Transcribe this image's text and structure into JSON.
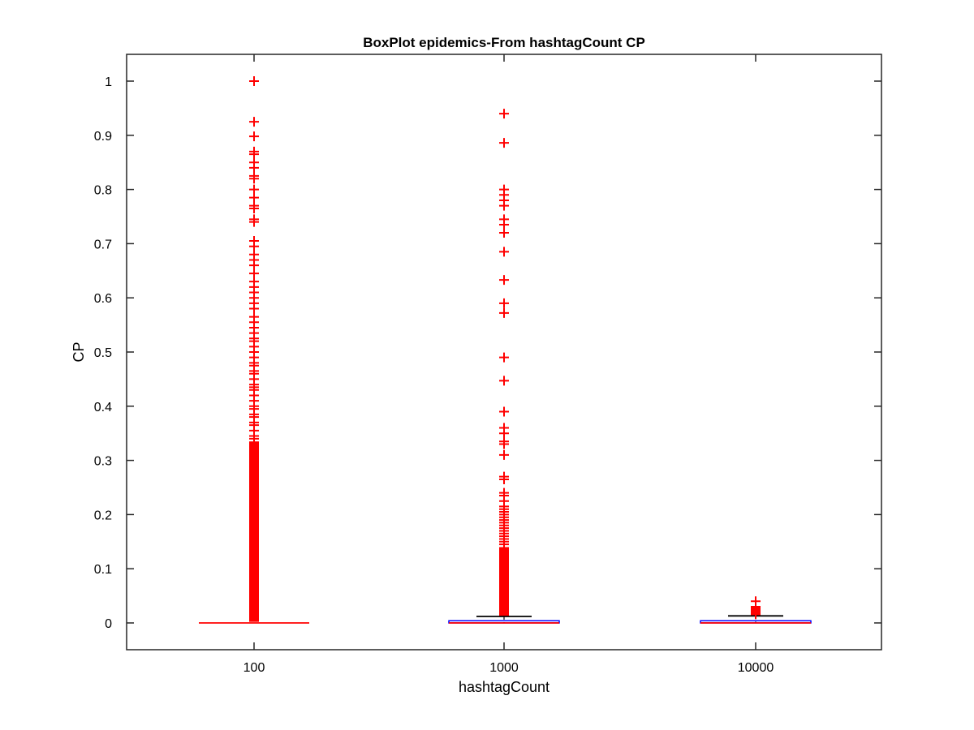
{
  "chart_data": {
    "type": "box",
    "title": "BoxPlot epidemics-From hashtagCount CP",
    "xlabel": "hashtagCount",
    "ylabel": "CP",
    "categories": [
      "100",
      "1000",
      "10000"
    ],
    "ylim": [
      -0.05,
      1.05
    ],
    "yticks": [
      0,
      0.1,
      0.2,
      0.3,
      0.4,
      0.5,
      0.6,
      0.7,
      0.8,
      0.9,
      1
    ],
    "ytick_labels": [
      "0",
      "0.1",
      "0.2",
      "0.3",
      "0.4",
      "0.5",
      "0.6",
      "0.7",
      "0.8",
      "0.9",
      "1"
    ],
    "grid": false,
    "colors": {
      "box": "#0000ff",
      "median": "#ff0000",
      "whisker": "#000000",
      "outlier": "#ff0000"
    },
    "boxes": [
      {
        "category": "100",
        "q1": 0,
        "median": 0,
        "q3": 0,
        "whisker_low": 0,
        "whisker_high": 0,
        "outlier_band": [
          0.002,
          0.335
        ],
        "outliers": [
          1.0,
          0.925,
          0.898,
          0.87,
          0.865,
          0.85,
          0.84,
          0.825,
          0.82,
          0.8,
          0.785,
          0.77,
          0.765,
          0.745,
          0.74,
          0.705,
          0.695,
          0.68,
          0.67,
          0.66,
          0.645,
          0.63,
          0.62,
          0.61,
          0.6,
          0.59,
          0.58,
          0.565,
          0.555,
          0.545,
          0.535,
          0.525,
          0.52,
          0.51,
          0.5,
          0.49,
          0.48,
          0.475,
          0.465,
          0.46,
          0.45,
          0.44,
          0.435,
          0.43,
          0.42,
          0.41,
          0.4,
          0.395,
          0.385,
          0.38,
          0.37,
          0.365,
          0.355,
          0.345,
          0.34
        ]
      },
      {
        "category": "1000",
        "q1": 0,
        "median": 0,
        "q3": 0.004,
        "whisker_low": 0,
        "whisker_high": 0.012,
        "outlier_band": [
          0.012,
          0.14
        ],
        "outliers": [
          0.94,
          0.886,
          0.8,
          0.79,
          0.78,
          0.77,
          0.745,
          0.735,
          0.72,
          0.685,
          0.633,
          0.59,
          0.572,
          0.49,
          0.447,
          0.39,
          0.36,
          0.35,
          0.335,
          0.33,
          0.31,
          0.27,
          0.265,
          0.24,
          0.235,
          0.225,
          0.215,
          0.21,
          0.205,
          0.2,
          0.195,
          0.19,
          0.185,
          0.18,
          0.175,
          0.17,
          0.165,
          0.16,
          0.155,
          0.15,
          0.145
        ]
      },
      {
        "category": "10000",
        "q1": 0,
        "median": 0,
        "q3": 0.004,
        "whisker_low": 0,
        "whisker_high": 0.013,
        "outlier_band": [
          0.013,
          0.03
        ],
        "outliers": [
          0.04,
          0.03,
          0.027,
          0.024,
          0.02,
          0.016
        ]
      }
    ]
  }
}
